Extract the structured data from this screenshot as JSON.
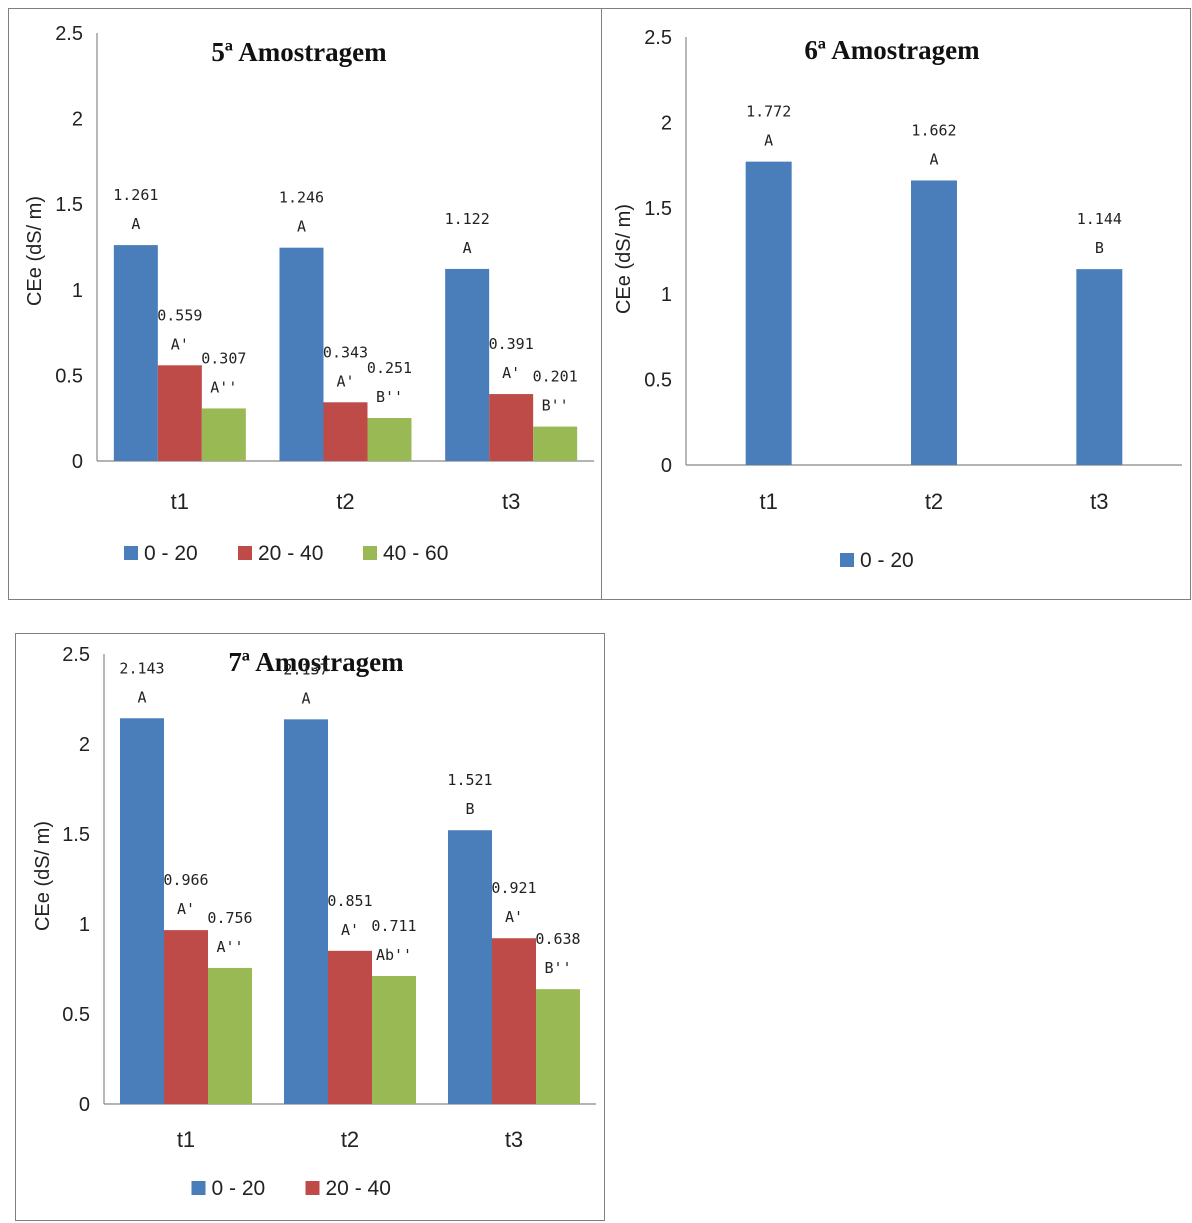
{
  "chart_data": [
    {
      "type": "bar",
      "title": "5ª Amostragem",
      "ylabel": "CEe (dS/ m)",
      "xlabel": "",
      "ylim": [
        0,
        2.5
      ],
      "yticks": [
        "0",
        "0.5",
        "1",
        "1.5",
        "2",
        "2.5"
      ],
      "categories": [
        "t1",
        "t2",
        "t3"
      ],
      "legend_position": "bottom",
      "series": [
        {
          "name": "0 - 20",
          "color": "#4a7ebb",
          "values": [
            1.261,
            1.246,
            1.122
          ],
          "value_labels": [
            "1.261",
            "1.246",
            "1.122"
          ],
          "letters": [
            "A",
            "A",
            "A"
          ]
        },
        {
          "name": "20 - 40",
          "color": "#be4b48",
          "values": [
            0.559,
            0.343,
            0.391
          ],
          "value_labels": [
            "0.559",
            "0.343",
            "0.391"
          ],
          "letters": [
            "A'",
            "A'",
            "A'"
          ]
        },
        {
          "name": "40 - 60",
          "color": "#98b954",
          "values": [
            0.307,
            0.251,
            0.201
          ],
          "value_labels": [
            "0.307",
            "0.251",
            "0.201"
          ],
          "letters": [
            "A''",
            "B''",
            "B''"
          ]
        }
      ]
    },
    {
      "type": "bar",
      "title": "6ª Amostragem",
      "ylabel": "CEe (dS/ m)",
      "xlabel": "",
      "ylim": [
        0,
        2.5
      ],
      "yticks": [
        "0",
        "0.5",
        "1",
        "1.5",
        "2",
        "2.5"
      ],
      "categories": [
        "t1",
        "t2",
        "t3"
      ],
      "legend_position": "bottom",
      "series": [
        {
          "name": "0 - 20",
          "color": "#4a7ebb",
          "values": [
            1.772,
            1.662,
            1.144
          ],
          "value_labels": [
            "1.772",
            "1.662",
            "1.144"
          ],
          "letters": [
            "A",
            "A",
            "B"
          ]
        }
      ]
    },
    {
      "type": "bar",
      "title": "7ª Amostragem",
      "ylabel": "CEe (dS/ m)",
      "xlabel": "",
      "ylim": [
        0,
        2.5
      ],
      "yticks": [
        "0",
        "0.5",
        "1",
        "1.5",
        "2",
        "2.5"
      ],
      "categories": [
        "t1",
        "t2",
        "t3"
      ],
      "legend_position": "bottom",
      "series": [
        {
          "name": "0 - 20",
          "color": "#4a7ebb",
          "values": [
            2.143,
            2.137,
            1.521
          ],
          "value_labels": [
            "2.143",
            "2.137",
            "1.521"
          ],
          "letters": [
            "A",
            "A",
            "B"
          ]
        },
        {
          "name": "20 - 40",
          "color": "#be4b48",
          "values": [
            0.966,
            0.851,
            0.921
          ],
          "value_labels": [
            "0.966",
            "0.851",
            "0.921"
          ],
          "letters": [
            "A'",
            "A'",
            "A'"
          ]
        },
        {
          "name": "",
          "color": "#98b954",
          "values": [
            0.756,
            0.711,
            0.638
          ],
          "value_labels": [
            "0.756",
            "0.711",
            "0.638"
          ],
          "letters": [
            "A''",
            "Ab''",
            "B''"
          ]
        }
      ]
    }
  ]
}
